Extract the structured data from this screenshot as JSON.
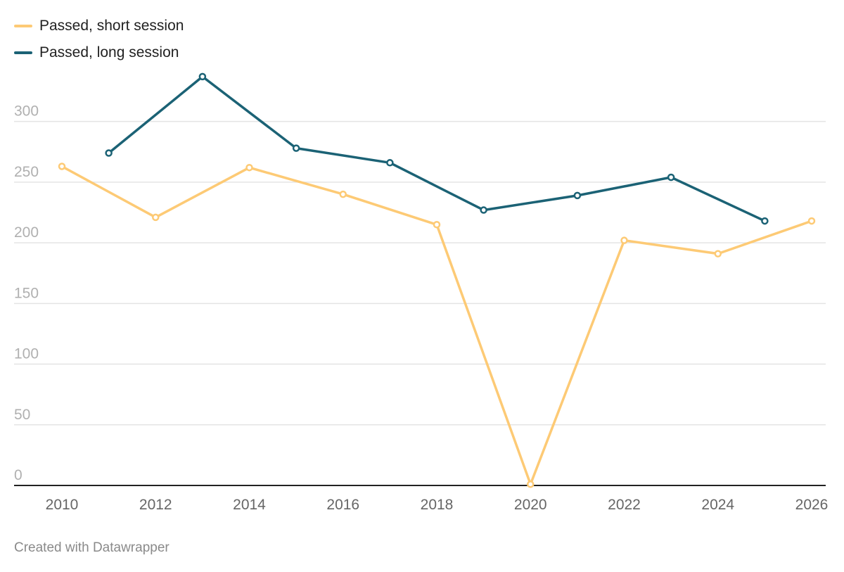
{
  "footer": {
    "credit": "Created with Datawrapper"
  },
  "chart_data": {
    "type": "line",
    "title": "",
    "xlabel": "",
    "ylabel": "",
    "xlim": [
      2010,
      2026
    ],
    "ylim": [
      0,
      340
    ],
    "x_ticks": [
      "2010",
      "2012",
      "2014",
      "2016",
      "2018",
      "2020",
      "2022",
      "2024",
      "2026"
    ],
    "y_ticks": [
      "0",
      "50",
      "100",
      "150",
      "200",
      "250",
      "300"
    ],
    "grid": true,
    "legend": "top-left",
    "series": [
      {
        "name": "Passed, short session",
        "color": "#fdca75",
        "x": [
          2010,
          2012,
          2014,
          2016,
          2018,
          2020,
          2022,
          2024,
          2026
        ],
        "y": [
          263,
          221,
          262,
          240,
          215,
          1,
          202,
          191,
          218
        ]
      },
      {
        "name": "Passed, long session",
        "color": "#1b6275",
        "x": [
          2011,
          2013,
          2015,
          2017,
          2019,
          2021,
          2023,
          2025
        ],
        "y": [
          274,
          337,
          278,
          266,
          227,
          239,
          254,
          218
        ]
      }
    ]
  }
}
